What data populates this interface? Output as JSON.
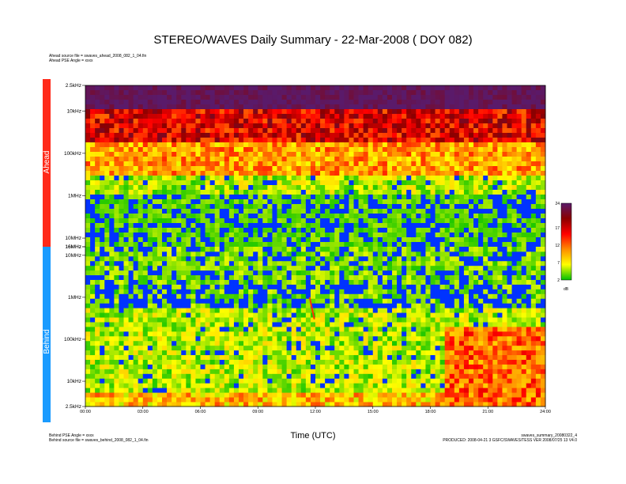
{
  "chart_data": {
    "type": "heatmap",
    "title": "STEREO/WAVES Daily Summary - 22-Mar-2008 ( DOY 082)",
    "xlabel": "Time (UTC)",
    "x_ticks": [
      "00:00",
      "03:00",
      "06:00",
      "09:00",
      "12:00",
      "15:00",
      "18:00",
      "21:00",
      "24:00"
    ],
    "xlim_hours": [
      0,
      24
    ],
    "panels": [
      {
        "name": "Ahead",
        "color": "#ff2a1a",
        "y_ticks": [
          "2.5kHz",
          "10kHz",
          "100kHz",
          "1MHz",
          "10MHz",
          "16MHz"
        ],
        "y_tick_freqs_hz": [
          2500,
          10000,
          100000,
          1000000,
          10000000,
          16000000
        ],
        "scale": "log",
        "freq_order": "increasing downward"
      },
      {
        "name": "Behind",
        "color": "#1a9bff",
        "y_ticks": [
          "16MHz",
          "10MHz",
          "1MHz",
          "100kHz",
          "10kHz",
          "2.5kHz"
        ],
        "y_tick_freqs_hz": [
          16000000,
          10000000,
          1000000,
          100000,
          10000,
          2500
        ],
        "scale": "log",
        "freq_order": "decreasing downward"
      }
    ],
    "colorbar": {
      "label": "dB",
      "ticks": [
        24,
        17,
        12,
        7,
        2
      ],
      "range": [
        2,
        24
      ],
      "colors": [
        "#00c000",
        "#ffff00",
        "#ff8c00",
        "#ff0000",
        "#8b0000",
        "#5a1a6a"
      ]
    },
    "features": [
      {
        "panel": "Behind",
        "type": "type III burst",
        "start_hour": 11.7,
        "freq_range_hz": [
          1000000,
          300000
        ]
      },
      {
        "panel": "Behind",
        "type": "enhanced low-frequency emission",
        "start_hour": 18.5,
        "end_hour": 24
      }
    ]
  },
  "header": {
    "ahead_source": "Ahead source file = swaves_ahead_2008_082_1_04.fin",
    "ahead_angle": "Ahead PSE Angle = xxxx"
  },
  "footer": {
    "behind_angle": "Behind PSE Angle = xxxx",
    "behind_source": "Behind source file = swaves_behind_2008_082_1_04.fin",
    "filename": "swaves_summary_20080322_4",
    "produced": "PRODUCED: 2008-04-21 3 GSFC/SWAVES/TESS VER 2008/07/25 13 V4.0"
  }
}
